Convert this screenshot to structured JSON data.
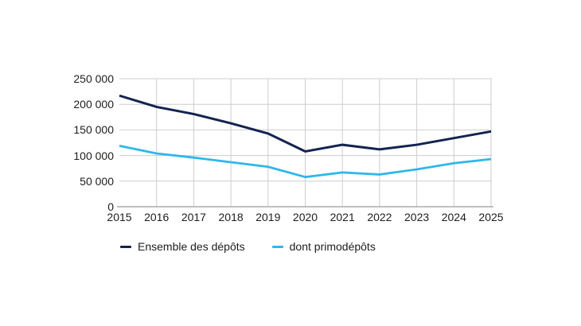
{
  "chart_data": {
    "type": "line",
    "title": "",
    "xlabel": "",
    "ylabel": "",
    "categories": [
      "2015",
      "2016",
      "2017",
      "2018",
      "2019",
      "2020",
      "2021",
      "2022",
      "2023",
      "2024",
      "2025"
    ],
    "series": [
      {
        "name": "Ensemble des dépôts",
        "color": "#14234f",
        "stroke_width": 3,
        "values": [
          217000,
          195000,
          181000,
          163000,
          143000,
          108000,
          121000,
          112000,
          121000,
          134000,
          147000
        ]
      },
      {
        "name": "dont primodépôts",
        "color": "#2db8ea",
        "stroke_width": 2.8,
        "values": [
          119000,
          104000,
          96000,
          87000,
          78000,
          58000,
          67000,
          63000,
          73000,
          85000,
          93000
        ]
      }
    ],
    "ylim": [
      0,
      250000
    ],
    "y_ticks": [
      {
        "value": 0,
        "label": "0"
      },
      {
        "value": 50000,
        "label": "50 000"
      },
      {
        "value": 100000,
        "label": "100 000"
      },
      {
        "value": 150000,
        "label": "150 000"
      },
      {
        "value": 200000,
        "label": "200 000"
      },
      {
        "value": 250000,
        "label": "250 000"
      }
    ],
    "grid": true,
    "legend_position": "bottom",
    "colors": {
      "gridline": "#cdcdcd",
      "axis_line": "#9b9b9b",
      "tick_text": "#1d1d1b"
    }
  }
}
